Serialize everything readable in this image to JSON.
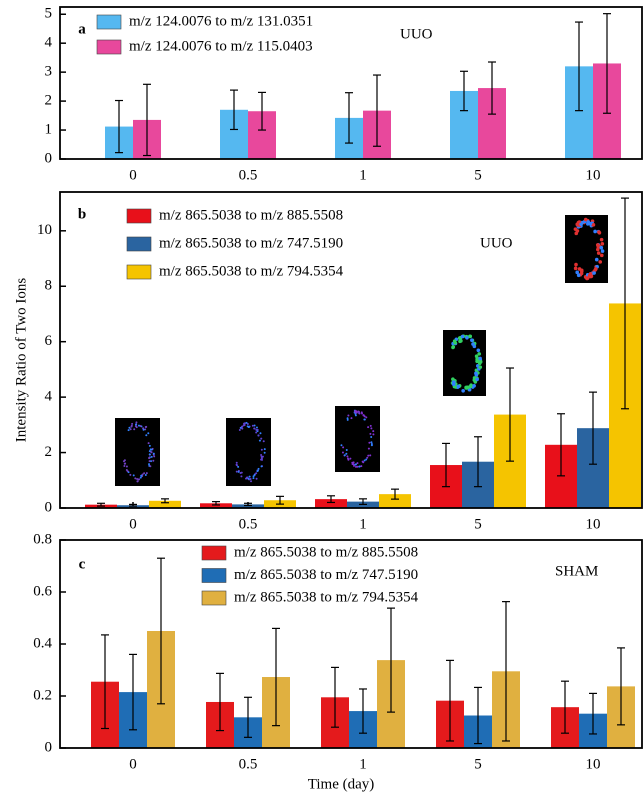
{
  "chart_data": [
    {
      "type": "bar",
      "panel_label": "a",
      "annotation": "UUO",
      "categories": [
        "0",
        "0.5",
        "1",
        "5",
        "10"
      ],
      "ylim": [
        0,
        5.25
      ],
      "yticks": [
        0,
        1,
        2,
        3,
        4,
        5
      ],
      "series": [
        {
          "name": "m/z 124.0076 to m/z 131.0351",
          "color": "#55b8f0",
          "values": [
            1.12,
            1.7,
            1.42,
            2.35,
            3.2
          ],
          "errors": [
            0.9,
            0.68,
            0.87,
            0.68,
            1.53
          ]
        },
        {
          "name": "m/z 124.0076 to m/z 115.0403",
          "color": "#e8489c",
          "values": [
            1.35,
            1.65,
            1.67,
            2.45,
            3.3
          ],
          "errors": [
            1.23,
            0.65,
            1.23,
            0.9,
            1.72
          ]
        }
      ]
    },
    {
      "type": "bar",
      "panel_label": "b",
      "annotation": "UUO",
      "y_label": "Intensity Ratio of Two Ions",
      "categories": [
        "0",
        "0.5",
        "1",
        "5",
        "10"
      ],
      "ylim": [
        0,
        11.4
      ],
      "yticks": [
        0,
        2,
        4,
        6,
        8,
        10
      ],
      "series": [
        {
          "name": "m/z 865.5038 to m/z 885.5508",
          "color": "#e8101a",
          "values": [
            0.12,
            0.17,
            0.32,
            1.55,
            2.28
          ],
          "errors": [
            0.05,
            0.06,
            0.12,
            0.78,
            1.12
          ]
        },
        {
          "name": "m/z 865.5038 to m/z 747.5190",
          "color": "#2a64a0",
          "values": [
            0.1,
            0.13,
            0.23,
            1.67,
            2.88
          ],
          "errors": [
            0.03,
            0.04,
            0.1,
            0.9,
            1.3
          ]
        },
        {
          "name": "m/z 865.5038 to m/z 794.5354",
          "color": "#f5c400",
          "values": [
            0.26,
            0.28,
            0.5,
            3.37,
            7.38
          ],
          "errors": [
            0.07,
            0.14,
            0.18,
            1.68,
            3.8
          ]
        }
      ]
    },
    {
      "type": "bar",
      "panel_label": "c",
      "annotation": "SHAM",
      "x_label": "Time (day)",
      "categories": [
        "0",
        "0.5",
        "1",
        "5",
        "10"
      ],
      "ylim": [
        0,
        0.8
      ],
      "yticks": [
        0,
        0.2,
        0.4,
        0.6,
        0.8
      ],
      "series": [
        {
          "name": "m/z 865.5038 to m/z 885.5508",
          "color": "#e41a1c",
          "values": [
            0.255,
            0.177,
            0.195,
            0.182,
            0.157
          ],
          "errors": [
            0.18,
            0.11,
            0.115,
            0.155,
            0.1
          ]
        },
        {
          "name": "m/z 865.5038 to m/z 747.5190",
          "color": "#1f6db5",
          "values": [
            0.215,
            0.118,
            0.142,
            0.125,
            0.132
          ],
          "errors": [
            0.145,
            0.077,
            0.085,
            0.108,
            0.078
          ]
        },
        {
          "name": "m/z 865.5038 to m/z 794.5354",
          "color": "#e0b040",
          "values": [
            0.45,
            0.273,
            0.338,
            0.295,
            0.237
          ],
          "errors": [
            0.28,
            0.187,
            0.2,
            0.268,
            0.148
          ]
        }
      ]
    }
  ]
}
